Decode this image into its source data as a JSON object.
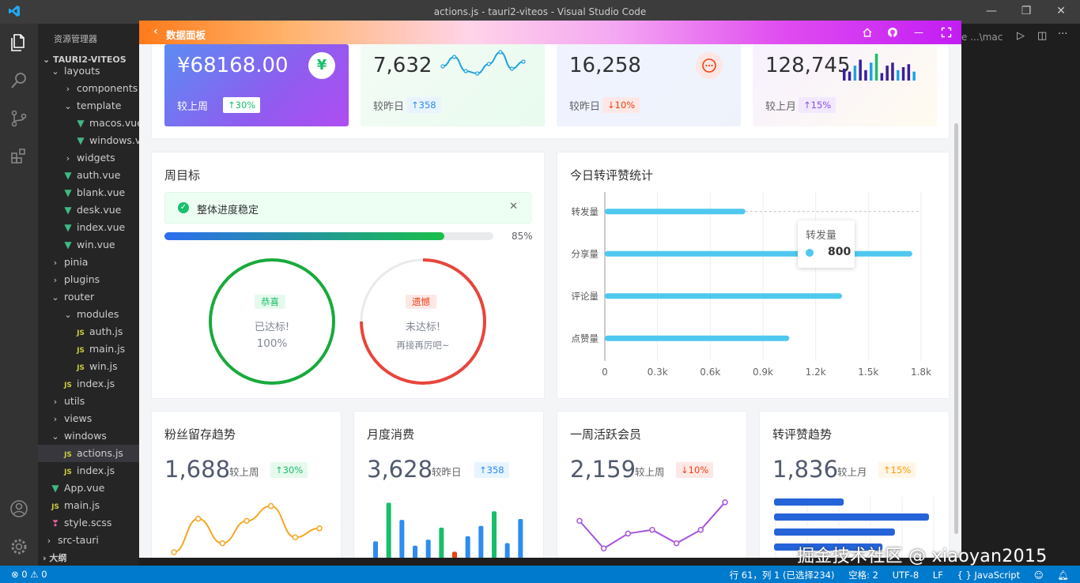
{
  "window": {
    "title": "actions.js - tauri2-viteos - Visual Studio Code"
  },
  "sidebar": {
    "header": "资源管理器",
    "project": "TAURI2-VITEOS",
    "outline": "大纲",
    "items": [
      {
        "label": "layouts",
        "type": "folder-open"
      },
      {
        "label": "components",
        "type": "folder"
      },
      {
        "label": "template",
        "type": "folder-open"
      },
      {
        "label": "macos.vue",
        "type": "vue"
      },
      {
        "label": "windows.vue",
        "type": "vue"
      },
      {
        "label": "widgets",
        "type": "folder"
      },
      {
        "label": "auth.vue",
        "type": "vue"
      },
      {
        "label": "blank.vue",
        "type": "vue"
      },
      {
        "label": "desk.vue",
        "type": "vue"
      },
      {
        "label": "index.vue",
        "type": "vue"
      },
      {
        "label": "win.vue",
        "type": "vue"
      },
      {
        "label": "pinia",
        "type": "folder"
      },
      {
        "label": "plugins",
        "type": "folder"
      },
      {
        "label": "router",
        "type": "folder-open"
      },
      {
        "label": "modules",
        "type": "folder-open"
      },
      {
        "label": "auth.js",
        "type": "js"
      },
      {
        "label": "main.js",
        "type": "js"
      },
      {
        "label": "win.js",
        "type": "js"
      },
      {
        "label": "index.js",
        "type": "js"
      },
      {
        "label": "utils",
        "type": "folder"
      },
      {
        "label": "views",
        "type": "folder"
      },
      {
        "label": "windows",
        "type": "folder-open"
      },
      {
        "label": "actions.js",
        "type": "js"
      },
      {
        "label": "index.js",
        "type": "js"
      },
      {
        "label": "App.vue",
        "type": "vue"
      },
      {
        "label": "main.js",
        "type": "js"
      },
      {
        "label": "style.scss",
        "type": "css"
      },
      {
        "label": "src-tauri",
        "type": "folder"
      }
    ]
  },
  "editor": {
    "tab_hint": "e  ...\\mac"
  },
  "statusbar": {
    "problems": "⊗ 0 ⚠ 0",
    "position": "行 61，列 1 (已选择234)",
    "spaces": "空格: 2",
    "encoding": "UTF-8",
    "eol": "LF",
    "language": "{ } JavaScript"
  },
  "app": {
    "header_title": "数据面板",
    "stats": [
      {
        "value": "¥68168.00",
        "compare": "较上周",
        "badge": "↑30%"
      },
      {
        "value": "7,632",
        "compare": "较昨日",
        "badge": "↑358"
      },
      {
        "value": "16,258",
        "compare": "较昨日",
        "badge": "↓10%"
      },
      {
        "value": "128,745",
        "compare": "较上月",
        "badge": "↑15%"
      }
    ],
    "goal": {
      "title": "周目标",
      "alert": "整体进度稳定",
      "progress_label": "85%",
      "progress": 0.85,
      "ring1": {
        "tag": "恭喜",
        "text": "已达标!",
        "value": "100%"
      },
      "ring2": {
        "tag": "遗憾",
        "text": "未达标!",
        "value": "再接再厉吧~"
      }
    },
    "bottom": [
      {
        "title": "粉丝留存趋势",
        "value": "1,688",
        "compare": "较上周",
        "badge": "↑30%"
      },
      {
        "title": "月度消费",
        "value": "3,628",
        "compare": "较昨日",
        "badge": "↑358"
      },
      {
        "title": "一周活跃会员",
        "value": "2,159",
        "compare": "较上周",
        "badge": "↓10%"
      },
      {
        "title": "转评赞趋势",
        "value": "1,836",
        "compare": "较上月",
        "badge": "↑15%"
      }
    ]
  },
  "chart_data": [
    {
      "type": "bar",
      "orientation": "horizontal",
      "title": "今日转评赞统计",
      "categories": [
        "转发量",
        "分享量",
        "评论量",
        "点赞量"
      ],
      "values": [
        800,
        1750,
        1350,
        1050
      ],
      "xlim": [
        0,
        1800
      ],
      "xticks": [
        "0",
        "0.3k",
        "0.6k",
        "0.9k",
        "1.2k",
        "1.5k",
        "1.8k"
      ],
      "tooltip": {
        "label": "转发量",
        "value": "800"
      }
    },
    {
      "type": "line",
      "title": "粉丝留存趋势",
      "values": [
        0,
        45,
        12,
        42,
        62,
        20,
        32
      ],
      "ylim": [
        0,
        70
      ]
    },
    {
      "type": "bar",
      "title": "月度消费",
      "values": [
        20,
        65,
        45,
        15,
        22,
        36,
        8,
        26,
        38,
        55,
        18,
        46
      ],
      "colors": [
        "#2d8cf0",
        "#19be6b",
        "#2d8cf0",
        "#2d8cf0",
        "#2d8cf0",
        "#19be6b",
        "#ed4014",
        "#2d8cf0",
        "#2d8cf0",
        "#19be6b",
        "#2d8cf0",
        "#2d8cf0"
      ],
      "ylim": [
        0,
        70
      ]
    },
    {
      "type": "line",
      "title": "一周活跃会员",
      "values": [
        42,
        5,
        25,
        30,
        12,
        30,
        67
      ],
      "ylim": [
        0,
        70
      ]
    },
    {
      "type": "bar",
      "orientation": "horizontal",
      "title": "转评赞趋势",
      "values": [
        45,
        100,
        78,
        70
      ],
      "xlim": [
        0,
        100
      ]
    },
    {
      "type": "line",
      "title": "stat-sparkline",
      "values": [
        4,
        8,
        2,
        1,
        5,
        10,
        3,
        6
      ]
    },
    {
      "type": "bar",
      "title": "stat-mini-bars",
      "values": [
        8,
        6,
        10,
        14,
        7,
        12,
        18,
        5,
        10,
        12,
        7,
        9,
        11,
        6
      ],
      "colors": [
        "#3a1f9e",
        "#3a1f9e",
        "#1da3e0",
        "#3a1f9e",
        "#3a1f9e",
        "#1da3e0",
        "#19be6b",
        "#3a1f9e",
        "#3a1f9e",
        "#3a1f9e",
        "#1da3e0",
        "#3a1f9e",
        "#3a1f9e",
        "#1da3e0"
      ]
    }
  ],
  "signature": "掘金技术社区 @ xiaoyan2015"
}
